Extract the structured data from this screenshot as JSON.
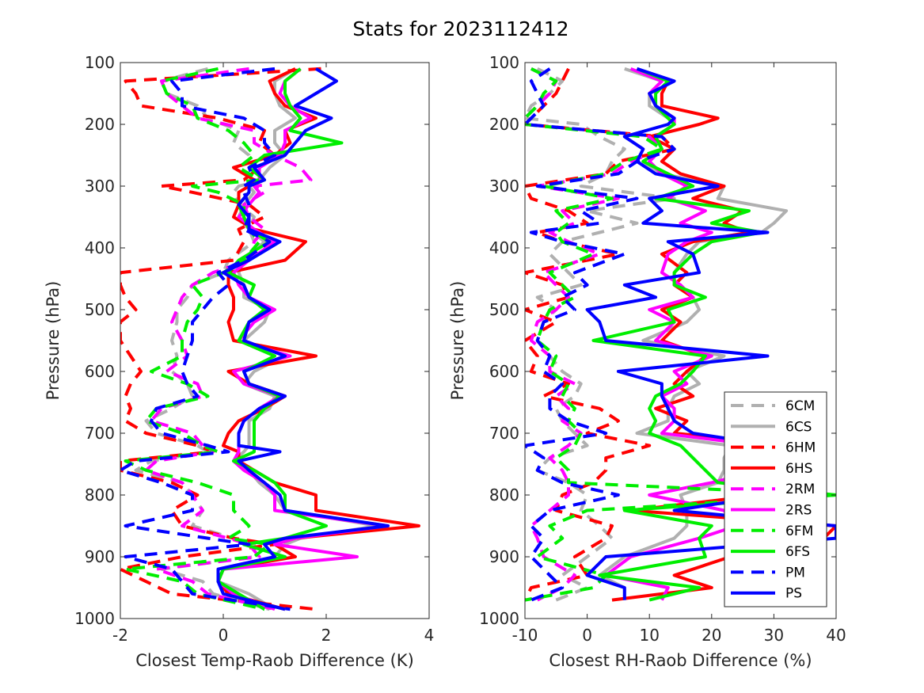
{
  "figure_title": "Stats for 2023112412",
  "colors": {
    "6C": "#b0b0b0",
    "6H": "#ff0000",
    "2R": "#ff00ff",
    "6F": "#00ee00",
    "P": "#0000ff",
    "axis": "#262626"
  },
  "legend": [
    {
      "label": "6CM",
      "color": "#b0b0b0",
      "dashed": true
    },
    {
      "label": "6CS",
      "color": "#b0b0b0",
      "dashed": false
    },
    {
      "label": "6HM",
      "color": "#ff0000",
      "dashed": true
    },
    {
      "label": "6HS",
      "color": "#ff0000",
      "dashed": false
    },
    {
      "label": "2RM",
      "color": "#ff00ff",
      "dashed": true
    },
    {
      "label": "2RS",
      "color": "#ff00ff",
      "dashed": false
    },
    {
      "label": "6FM",
      "color": "#00ee00",
      "dashed": true
    },
    {
      "label": "6FS",
      "color": "#00ee00",
      "dashed": false
    },
    {
      "label": "PM",
      "color": "#0000ff",
      "dashed": true
    },
    {
      "label": "PS",
      "color": "#0000ff",
      "dashed": false
    }
  ],
  "chart_data": [
    {
      "type": "line",
      "xlabel": "Closest Temp-Raob Difference (K)",
      "ylabel": "Pressure (hPa)",
      "xlim": [
        -2,
        4
      ],
      "ylim": [
        1000,
        100
      ],
      "y_reversed": true,
      "xticks": [
        "-2",
        "0",
        "2",
        "4"
      ],
      "yticks": [
        "100",
        "200",
        "300",
        "400",
        "500",
        "600",
        "700",
        "800",
        "900",
        "1000"
      ],
      "pressure_levels": [
        110,
        130,
        150,
        170,
        190,
        210,
        230,
        250,
        270,
        290,
        300,
        310,
        330,
        350,
        370,
        390,
        420,
        440,
        460,
        480,
        500,
        520,
        550,
        575,
        600,
        620,
        640,
        660,
        680,
        700,
        720,
        730,
        745,
        760,
        780,
        800,
        825,
        850,
        870,
        880,
        900,
        920,
        940,
        960,
        985
      ],
      "series": [
        {
          "name": "6CM",
          "values": [
            -0.3,
            -1.2,
            -1.1,
            -0.5,
            -0.3,
            0.3,
            0.2,
            0.5,
            0.6,
            0.8,
            0.3,
            0.2,
            0.3,
            0.6,
            0.5,
            0.6,
            0.1,
            0.0,
            -0.6,
            -0.7,
            -0.9,
            -0.9,
            -1.0,
            -0.9,
            -1.0,
            -0.7,
            -0.6,
            -1.0,
            -1.5,
            -1.3,
            -0.5,
            -0.3,
            -1.4,
            -1.7,
            -0.8,
            -0.6,
            -0.4,
            -0.6,
            0.2,
            0.6,
            0.6,
            -1.2,
            -0.4,
            -0.2,
            0.9
          ]
        },
        {
          "name": "6CS",
          "values": [
            1.4,
            1.0,
            1.0,
            1.1,
            1.4,
            1.0,
            1.0,
            1.2,
            0.9,
            0.7,
            0.5,
            0.6,
            0.4,
            0.3,
            0.5,
            0.8,
            0.4,
            0.3,
            0.4,
            0.4,
            0.9,
            0.8,
            0.4,
            1.2,
            0.6,
            0.4,
            1.0,
            0.9,
            0.5,
            0.5,
            0.5,
            0.4,
            0.2,
            0.5,
            0.7,
            1.0,
            1.2,
            3.0,
            1.5,
            1.2,
            1.0,
            0.0,
            -0.1,
            0.5,
            1.0
          ]
        },
        {
          "name": "6HM",
          "values": [
            1.9,
            -1.9,
            -1.7,
            -1.6,
            -0.1,
            0.8,
            0.7,
            1.0,
            0.7,
            0.4,
            -1.2,
            -0.6,
            0.5,
            0.8,
            0.3,
            0.4,
            0.2,
            -2.0,
            -2.0,
            -1.9,
            -1.7,
            -2.0,
            -2.0,
            -1.8,
            -1.6,
            -1.8,
            -1.9,
            -1.8,
            -1.9,
            -1.5,
            -0.5,
            -0.2,
            -2.0,
            -2.0,
            -1.0,
            -0.5,
            -1.0,
            -0.8,
            0.2,
            1.0,
            -0.8,
            -2.0,
            -1.5,
            -1.0,
            1.8
          ]
        },
        {
          "name": "6HS",
          "values": [
            1.4,
            0.9,
            1.0,
            1.2,
            1.8,
            1.2,
            1.3,
            1.0,
            0.2,
            0.6,
            0.5,
            0.3,
            0.3,
            0.2,
            0.6,
            1.6,
            1.2,
            0.1,
            0.1,
            0.2,
            0.2,
            0.1,
            0.2,
            1.8,
            0.1,
            0.5,
            1.2,
            0.8,
            0.3,
            0.1,
            0.0,
            0.3,
            0.3,
            0.6,
            1.0,
            1.8,
            1.8,
            3.8,
            1.4,
            1.0,
            1.4,
            0.0,
            -0.1,
            0.1,
            1.2
          ]
        },
        {
          "name": "2RM",
          "values": [
            0.5,
            -1.2,
            -1.1,
            -0.8,
            -0.5,
            0.6,
            0.6,
            1.0,
            1.5,
            1.7,
            0.6,
            0.8,
            0.4,
            0.5,
            0.8,
            0.6,
            0.5,
            -0.2,
            -0.6,
            -0.8,
            -0.9,
            -1.0,
            -0.8,
            -0.7,
            -1.1,
            -0.5,
            -0.4,
            -1.2,
            -1.4,
            -0.6,
            -0.4,
            -0.2,
            -1.3,
            -1.5,
            -0.8,
            -0.6,
            -0.4,
            -0.8,
            0.1,
            0.5,
            0.7,
            -1.3,
            -0.6,
            -0.3,
            1.0
          ]
        },
        {
          "name": "2RS",
          "values": [
            1.5,
            1.2,
            1.1,
            1.3,
            1.7,
            1.2,
            1.2,
            1.1,
            0.7,
            0.7,
            0.6,
            0.7,
            0.5,
            0.3,
            0.6,
            1.0,
            0.5,
            0.2,
            0.3,
            0.5,
            1.0,
            0.6,
            0.3,
            1.3,
            0.2,
            0.4,
            1.1,
            0.7,
            0.4,
            0.3,
            0.3,
            0.3,
            0.2,
            0.4,
            0.8,
            1.0,
            1.0,
            3.2,
            1.4,
            1.0,
            2.6,
            0.0,
            -0.1,
            0.2,
            1.0
          ]
        },
        {
          "name": "6FM",
          "values": [
            -0.1,
            -1.2,
            -1.1,
            -0.6,
            -0.5,
            0.1,
            0.4,
            0.6,
            0.3,
            0.7,
            -0.6,
            -0.1,
            0.4,
            0.4,
            0.5,
            0.7,
            0.4,
            0.0,
            -0.6,
            -0.4,
            -0.5,
            -0.7,
            -0.8,
            -0.8,
            -1.4,
            -0.7,
            -0.3,
            -1.3,
            -1.5,
            -0.8,
            -0.4,
            -0.1,
            -1.9,
            -1.5,
            -0.5,
            0.2,
            0.2,
            0.5,
            0.1,
            0.9,
            0.6,
            -1.9,
            -0.8,
            -0.5,
            0.8
          ]
        },
        {
          "name": "6FS",
          "values": [
            1.5,
            1.2,
            1.2,
            1.3,
            1.5,
            1.3,
            2.3,
            0.8,
            0.5,
            0.8,
            0.5,
            0.5,
            0.3,
            0.4,
            0.5,
            0.9,
            0.3,
            0.1,
            0.6,
            0.5,
            0.8,
            0.5,
            0.3,
            1.0,
            0.4,
            0.5,
            1.1,
            0.8,
            0.6,
            0.6,
            0.6,
            0.6,
            0.2,
            0.6,
            1.0,
            1.2,
            1.2,
            2.0,
            1.2,
            0.4,
            1.2,
            0.0,
            -0.1,
            0.3,
            0.8
          ]
        },
        {
          "name": "PM",
          "values": [
            1.0,
            -1.0,
            -0.8,
            -0.8,
            0.4,
            0.8,
            0.8,
            1.0,
            0.5,
            0.6,
            0.4,
            0.4,
            0.5,
            0.5,
            0.4,
            0.9,
            0.4,
            -0.1,
            0.1,
            -0.2,
            -0.4,
            -0.6,
            -0.6,
            -0.7,
            -0.8,
            -0.7,
            -0.5,
            -1.3,
            -1.4,
            -1.2,
            -0.3,
            0.1,
            -1.7,
            -2.0,
            -1.2,
            -0.6,
            -0.6,
            -1.9,
            -0.3,
            0.5,
            -1.9,
            -1.0,
            -0.8,
            -0.6,
            1.3
          ]
        },
        {
          "name": "PS",
          "values": [
            1.8,
            2.2,
            1.8,
            1.4,
            2.1,
            1.6,
            1.4,
            1.2,
            0.6,
            0.8,
            0.5,
            0.5,
            0.3,
            0.5,
            0.5,
            1.1,
            0.5,
            0.0,
            0.4,
            0.5,
            0.9,
            0.5,
            0.4,
            1.2,
            0.4,
            0.5,
            1.2,
            0.7,
            0.4,
            0.3,
            0.3,
            1.1,
            0.3,
            0.5,
            0.8,
            1.1,
            1.2,
            3.2,
            1.2,
            0.8,
            1.0,
            -0.1,
            -0.1,
            0.0,
            1.2
          ]
        }
      ]
    },
    {
      "type": "line",
      "xlabel": "Closest RH-Raob Difference (%)",
      "ylabel": "Pressure (hPa)",
      "xlim": [
        -10,
        40
      ],
      "ylim": [
        1000,
        100
      ],
      "y_reversed": true,
      "xticks": [
        "-10",
        "0",
        "10",
        "20",
        "30",
        "40"
      ],
      "yticks": [
        "100",
        "200",
        "300",
        "400",
        "500",
        "600",
        "700",
        "800",
        "900",
        "1000"
      ],
      "legend_position": "bottom-right",
      "pressure_levels": [
        110,
        130,
        150,
        170,
        190,
        200,
        220,
        240,
        260,
        280,
        300,
        320,
        340,
        360,
        375,
        390,
        410,
        440,
        460,
        480,
        500,
        520,
        550,
        575,
        600,
        620,
        640,
        660,
        680,
        700,
        720,
        740,
        760,
        780,
        800,
        825,
        850,
        870,
        900,
        930,
        950,
        970
      ],
      "series": [
        {
          "name": "6CM",
          "values": [
            -8,
            -4,
            -6,
            -9,
            -10,
            -1,
            2,
            6,
            4,
            3,
            -1,
            14,
            0,
            8,
            2,
            -4,
            -6,
            -3,
            -1,
            -8,
            -5,
            -7,
            -8,
            -6,
            -4,
            -1,
            -2,
            -5,
            -4,
            -2,
            0,
            -6,
            -8,
            -3,
            0,
            -1,
            2,
            4,
            0,
            -4,
            0,
            -5
          ]
        },
        {
          "name": "6CS",
          "values": [
            6,
            12,
            10,
            10,
            13,
            14,
            11,
            12,
            9,
            12,
            22,
            21,
            32,
            30,
            28,
            18,
            16,
            14,
            14,
            17,
            18,
            16,
            9,
            22,
            16,
            18,
            14,
            13,
            13,
            8,
            23,
            22,
            22,
            21,
            15,
            16,
            16,
            14,
            6,
            2,
            6,
            6
          ]
        },
        {
          "name": "6HM",
          "values": [
            -3,
            -4,
            -5,
            -7,
            -9,
            -10,
            12,
            14,
            5,
            3,
            -10,
            -9,
            -3,
            0,
            -8,
            -4,
            5,
            -10,
            -4,
            -3,
            -10,
            -5,
            -10,
            -8,
            -9,
            -3,
            -7,
            2,
            5,
            0,
            10,
            3,
            3,
            1,
            -4,
            -5,
            4,
            3,
            -2,
            0,
            -9,
            -10
          ]
        },
        {
          "name": "6HS",
          "values": [
            8,
            13,
            12,
            12,
            21,
            18,
            10,
            14,
            12,
            15,
            22,
            17,
            25,
            22,
            26,
            17,
            12,
            16,
            14,
            17,
            12,
            15,
            12,
            19,
            16,
            14,
            17,
            11,
            16,
            14,
            34,
            30,
            36,
            30,
            28,
            7,
            40,
            38,
            23,
            14,
            20,
            4
          ]
        },
        {
          "name": "2RM",
          "values": [
            -9,
            -5,
            -6,
            -8,
            -10,
            -10,
            10,
            12,
            7,
            4,
            -8,
            5,
            -4,
            -2,
            -6,
            -3,
            2,
            -7,
            -5,
            -3,
            -5,
            -8,
            -9,
            -6,
            -6,
            -2,
            -5,
            -3,
            -4,
            -1,
            -3,
            -6,
            -4,
            -3,
            -3,
            -6,
            -9,
            -8,
            -7,
            -2,
            -4,
            -8
          ]
        },
        {
          "name": "2RS",
          "values": [
            7,
            12,
            10,
            11,
            14,
            14,
            11,
            12,
            10,
            12,
            16,
            13,
            19,
            15,
            20,
            16,
            13,
            12,
            15,
            17,
            10,
            14,
            11,
            20,
            14,
            16,
            12,
            14,
            14,
            12,
            28,
            26,
            28,
            20,
            10,
            22,
            24,
            18,
            7,
            3,
            13,
            12
          ]
        },
        {
          "name": "6FM",
          "values": [
            -9,
            -5,
            -7,
            -8,
            -10,
            -10,
            9,
            12,
            6,
            3,
            -7,
            4,
            -5,
            -3,
            -5,
            -4,
            1,
            -6,
            -4,
            -2,
            -6,
            -7,
            -8,
            -5,
            -6,
            -3,
            -4,
            -2,
            -3,
            -1,
            -2,
            -5,
            -3,
            -3,
            40,
            0,
            -6,
            -4,
            -8,
            3,
            1,
            -10
          ]
        },
        {
          "name": "6FS",
          "values": [
            8,
            13,
            11,
            11,
            13,
            14,
            11,
            12,
            9,
            13,
            17,
            11,
            26,
            20,
            28,
            20,
            17,
            14,
            14,
            19,
            13,
            14,
            1,
            19,
            17,
            15,
            11,
            10,
            11,
            10,
            15,
            17,
            19,
            21,
            40,
            6,
            20,
            18,
            19,
            2,
            18,
            10
          ]
        },
        {
          "name": "PM",
          "values": [
            -6,
            -9,
            -8,
            -7,
            -9,
            -10,
            12,
            14,
            8,
            5,
            -8,
            8,
            -1,
            2,
            -9,
            -4,
            6,
            -2,
            0,
            -4,
            -2,
            -7,
            -8,
            -6,
            -7,
            -4,
            -6,
            -6,
            -3,
            3,
            -10,
            -7,
            -8,
            -4,
            5,
            -6,
            -9,
            -7,
            -9,
            -6,
            -4,
            -9
          ]
        },
        {
          "name": "PS",
          "values": [
            8,
            14,
            10,
            11,
            14,
            13,
            6,
            9,
            8,
            11,
            21,
            10,
            12,
            9,
            29,
            13,
            17,
            18,
            6,
            11,
            0,
            2,
            3,
            29,
            5,
            12,
            12,
            13,
            14,
            17,
            30,
            34,
            34,
            34,
            30,
            14,
            40,
            40,
            3,
            0,
            6,
            6
          ]
        }
      ]
    }
  ]
}
